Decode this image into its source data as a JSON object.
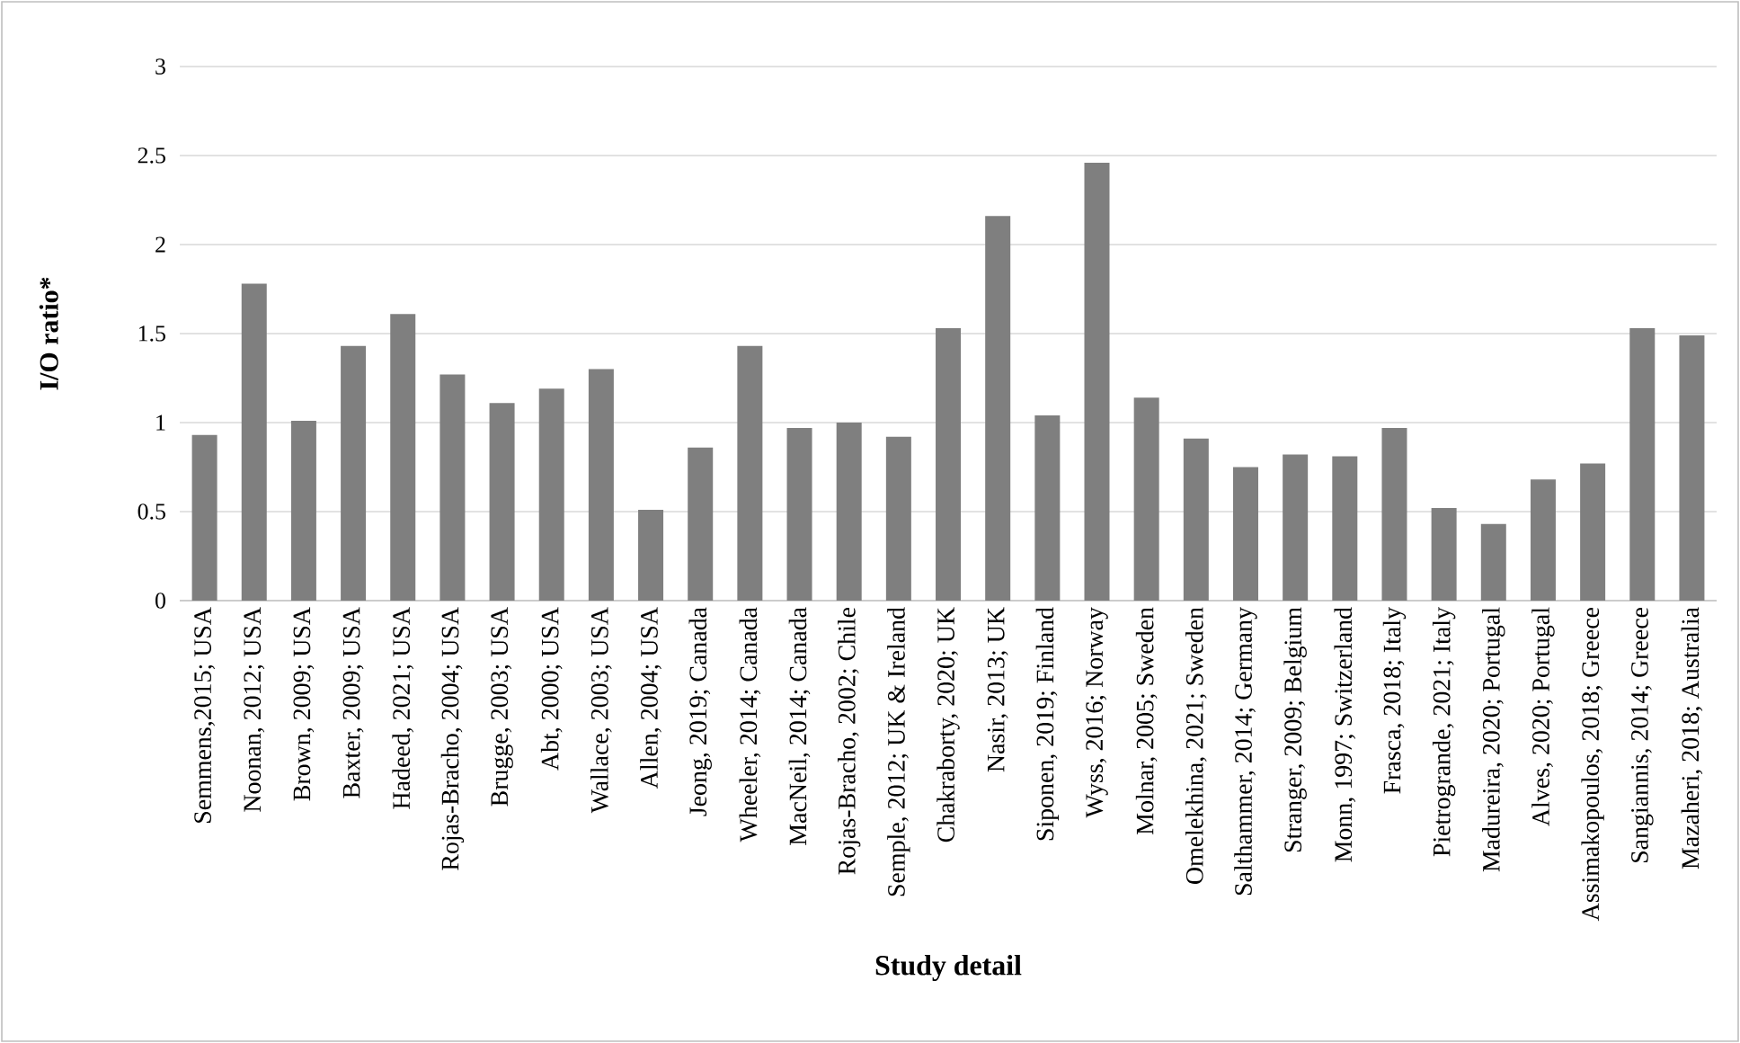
{
  "chart_data": {
    "type": "bar",
    "xlabel": "Study detail",
    "ylabel": "I/O ratio*",
    "categories": [
      "Semmens,2015; USA",
      "Noonan, 2012; USA",
      "Brown, 2009; USA",
      "Baxter, 2009; USA",
      "Hadeed, 2021; USA",
      "Rojas-Bracho, 2004; USA",
      "Brugge, 2003; USA",
      "Abt, 2000; USA",
      "Wallace, 2003; USA",
      "Allen, 2004; USA",
      "Jeong, 2019; Canada",
      "Wheeler, 2014; Canada",
      "MacNeil, 2014; Canada",
      "Rojas-Bracho, 2002; Chile",
      "Semple, 2012; UK & Ireland",
      "Chakraborty, 2020; UK",
      "Nasir, 2013; UK",
      "Siponen, 2019; Finland",
      "Wyss, 2016; Norway",
      "Molnar, 2005; Sweden",
      "Omelekhina, 2021; Sweden",
      "Salthammer, 2014; Germany",
      "Stranger, 2009; Belgium",
      "Monn, 1997; Switzerland",
      "Frasca, 2018; Italy",
      "Pietrogrande, 2021; Italy",
      "Madureira, 2020; Portugal",
      "Alves, 2020; Portugal",
      "Assimakopoulos, 2018; Greece",
      "Sangiannis, 2014; Greece",
      "Mazaheri, 2018; Australia"
    ],
    "values": [
      0.93,
      1.78,
      1.01,
      1.43,
      1.61,
      1.27,
      1.11,
      1.19,
      1.3,
      0.51,
      0.86,
      1.43,
      0.97,
      1.0,
      0.92,
      1.53,
      2.16,
      1.04,
      2.46,
      1.14,
      0.91,
      0.75,
      0.82,
      0.81,
      0.97,
      0.52,
      0.43,
      0.68,
      0.77,
      1.53,
      1.49
    ],
    "color": "#7f7f7f",
    "ylim": [
      0,
      3
    ],
    "yticks": [
      0,
      0.5,
      1,
      1.5,
      2,
      2.5,
      3
    ],
    "grid": "y"
  }
}
